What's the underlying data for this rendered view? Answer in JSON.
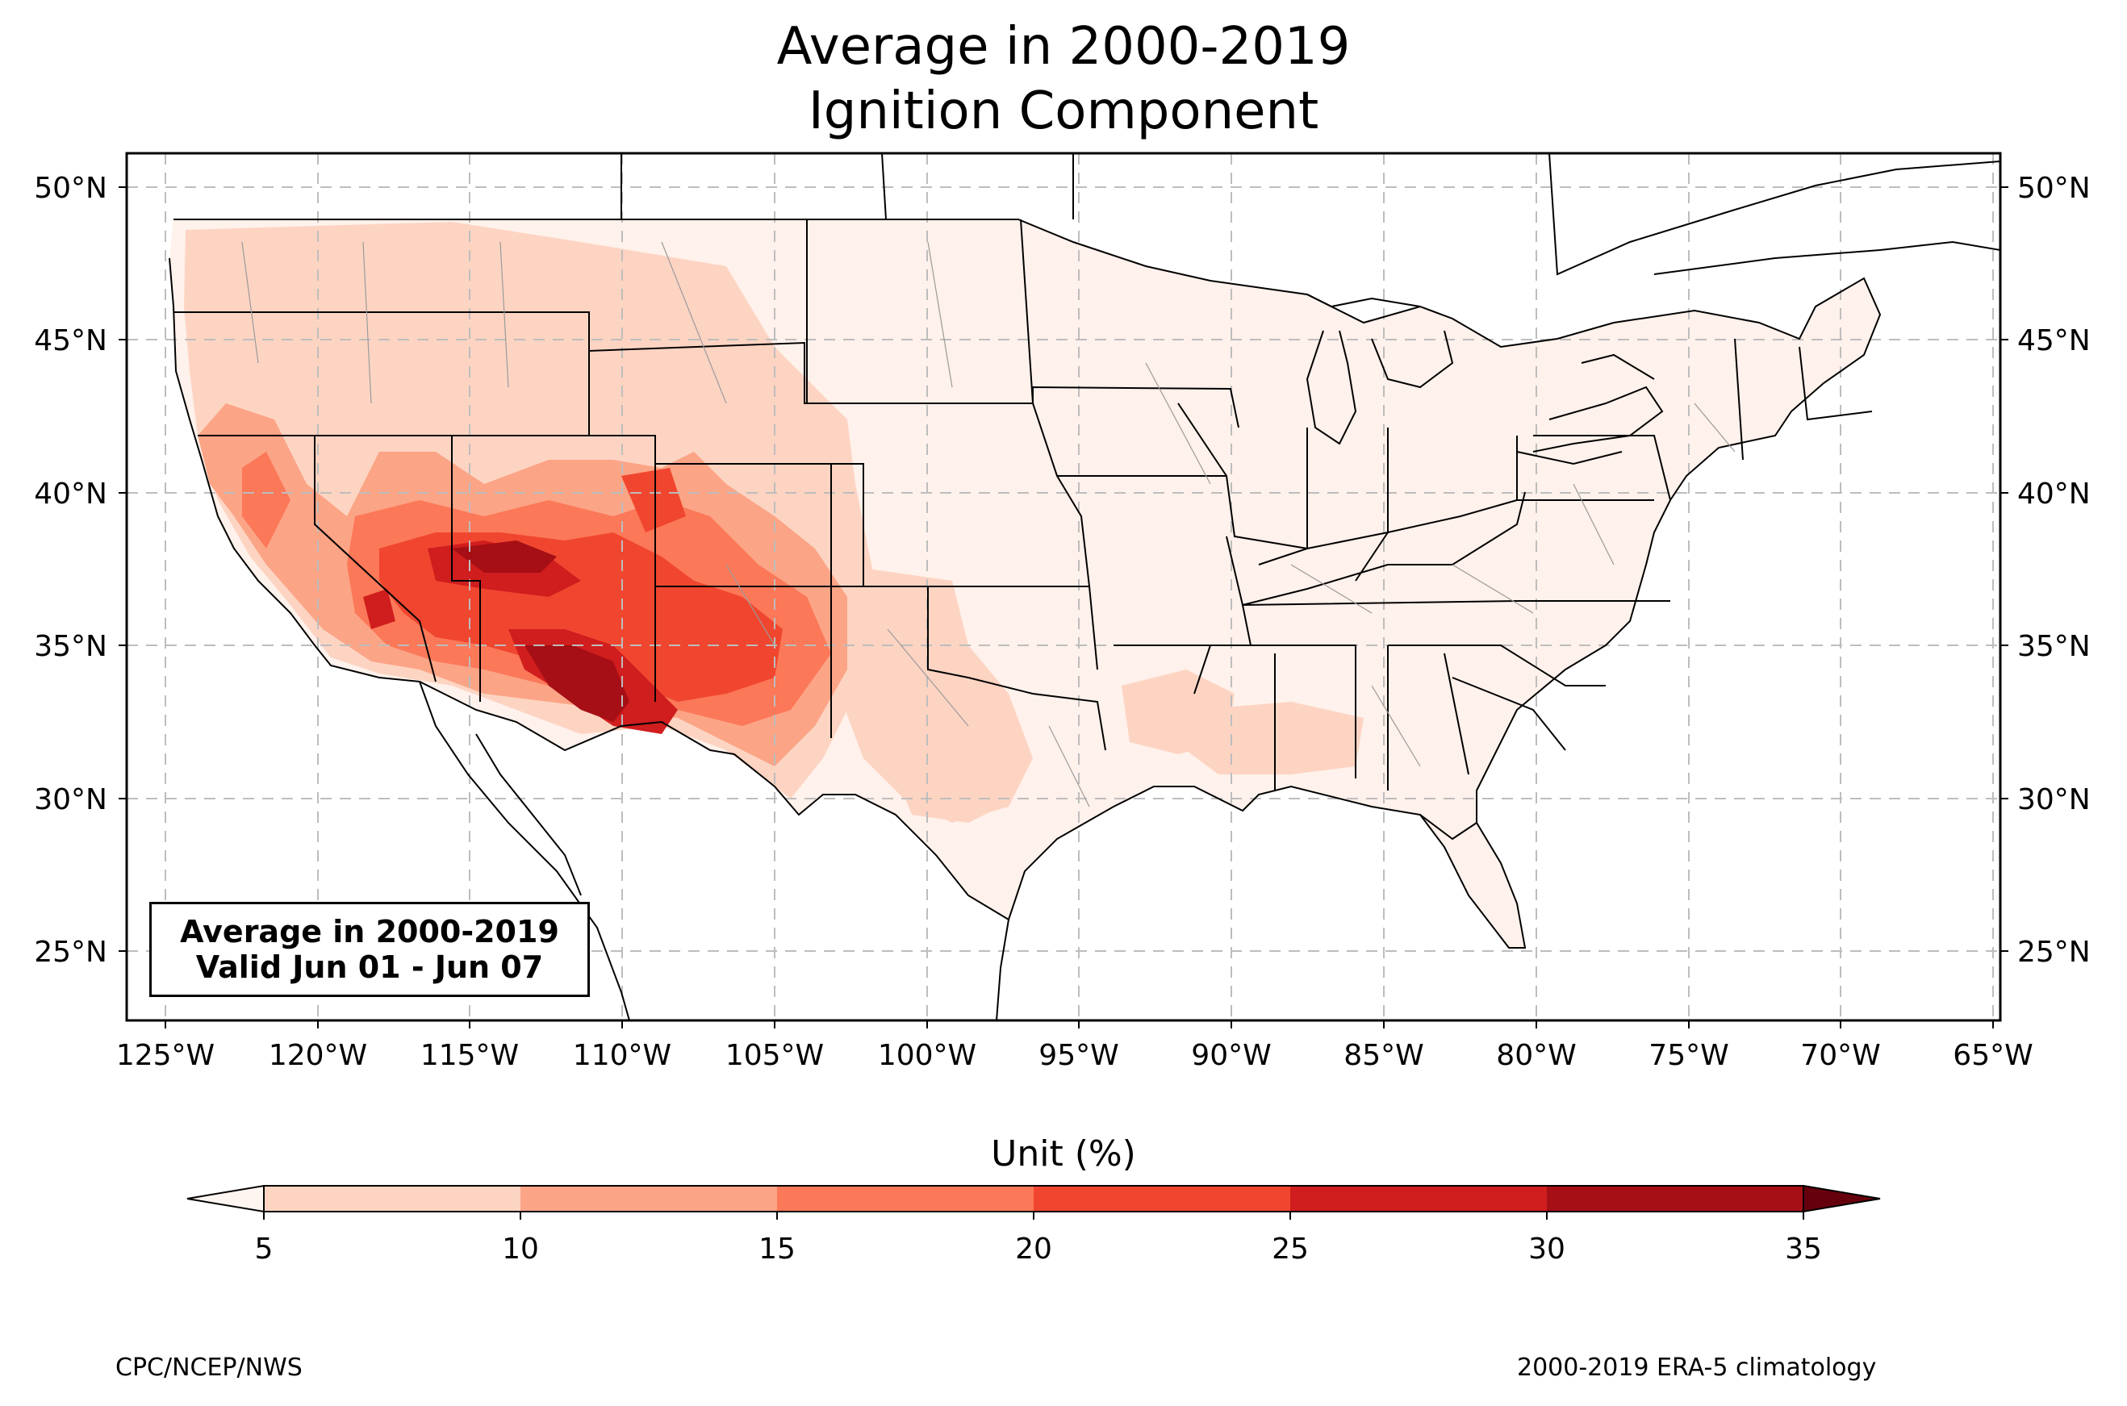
{
  "title": {
    "line1": "Average in 2000-2019",
    "line2": "Ignition Component"
  },
  "info_box": {
    "line1": "Average in 2000-2019",
    "line2": "Valid Jun 01 - Jun 07"
  },
  "axes": {
    "lat_ticks": [
      "50°N",
      "45°N",
      "40°N",
      "35°N",
      "30°N",
      "25°N"
    ],
    "lon_ticks": [
      "125°W",
      "120°W",
      "115°W",
      "110°W",
      "105°W",
      "100°W",
      "95°W",
      "90°W",
      "85°W",
      "80°W",
      "75°W",
      "70°W",
      "65°W"
    ]
  },
  "colorbar": {
    "label": "Unit (%)",
    "ticks": [
      "5",
      "10",
      "15",
      "20",
      "25",
      "30",
      "35"
    ],
    "colors": [
      "#fff5f0",
      "#fdd4c2",
      "#fca486",
      "#fb7858",
      "#f0462f",
      "#d01d1e",
      "#a50f15",
      "#67000d"
    ]
  },
  "footer": {
    "left": "CPC/NCEP/NWS",
    "right": "2000-2019 ERA-5 climatology"
  }
}
